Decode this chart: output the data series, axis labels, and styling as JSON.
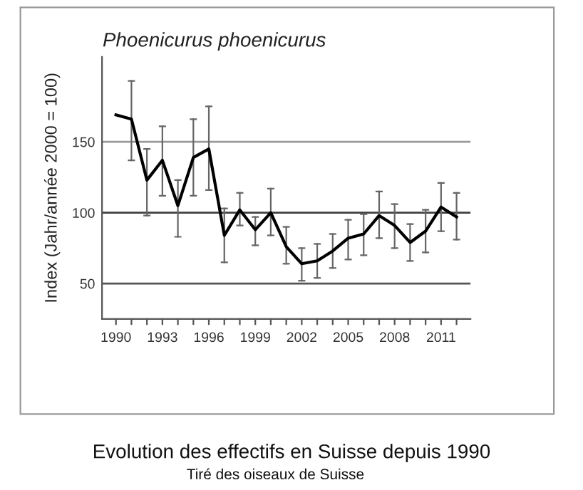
{
  "chart_data": {
    "type": "line",
    "title": "Phoenicurus phoenicurus",
    "ylabel": "Index (Jahr/année 2000 = 100)",
    "annotations": [
      "Evolution des effectifs en Suisse depuis 1990",
      "Tiré des oiseaux de Suisse"
    ],
    "x": [
      1990,
      1991,
      1992,
      1993,
      1994,
      1995,
      1996,
      1997,
      1998,
      1999,
      2000,
      2001,
      2002,
      2003,
      2004,
      2005,
      2006,
      2007,
      2008,
      2009,
      2010,
      2011,
      2012
    ],
    "series": [
      {
        "color": "#000000",
        "values": [
          169,
          166,
          123,
          137,
          105,
          139,
          145,
          84,
          102,
          88,
          100,
          76,
          64,
          66,
          73,
          82,
          85,
          98,
          91,
          79,
          87,
          104,
          97
        ],
        "errors": [
          null,
          [
            137,
            193
          ],
          [
            98,
            145
          ],
          [
            112,
            161
          ],
          [
            83,
            123
          ],
          [
            112,
            166
          ],
          [
            116,
            175
          ],
          [
            65,
            103
          ],
          [
            91,
            114
          ],
          [
            77,
            97
          ],
          [
            84,
            117
          ],
          [
            64,
            90
          ],
          [
            52,
            75
          ],
          [
            54,
            78
          ],
          [
            61,
            85
          ],
          [
            67,
            95
          ],
          [
            70,
            99
          ],
          [
            82,
            115
          ],
          [
            75,
            106
          ],
          [
            66,
            92
          ],
          [
            72,
            102
          ],
          [
            87,
            121
          ],
          [
            81,
            114
          ]
        ]
      }
    ],
    "xlim": [
      1989.1,
      2012.9
    ],
    "ylim": [
      25,
      210
    ],
    "xticks": [
      1990,
      {
        "value": 1991,
        "label": null
      },
      {
        "value": 1992,
        "label": null
      },
      1993,
      {
        "value": 1994,
        "label": null
      },
      {
        "value": 1995,
        "label": null
      },
      1996,
      {
        "value": 1997,
        "label": null
      },
      {
        "value": 1998,
        "label": null
      },
      1999,
      {
        "value": 2000,
        "label": null
      },
      {
        "value": 2001,
        "label": null
      },
      2002,
      {
        "value": 2003,
        "label": null
      },
      {
        "value": 2004,
        "label": null
      },
      2005,
      {
        "value": 2006,
        "label": null
      },
      {
        "value": 2007,
        "label": null
      },
      2008,
      {
        "value": 2009,
        "label": null
      },
      {
        "value": 2010,
        "label": null
      },
      2011,
      {
        "value": 2012,
        "label": null
      }
    ],
    "yticks": [
      50,
      100,
      150
    ],
    "ref_lines": [
      {
        "axis": "y",
        "value": 50,
        "color": "#555555"
      },
      {
        "axis": "y",
        "value": 100,
        "color": "#404040"
      },
      {
        "axis": "y",
        "value": 150,
        "color": "#999999"
      }
    ],
    "grid": false,
    "marker": "none",
    "line_style": "solid"
  }
}
